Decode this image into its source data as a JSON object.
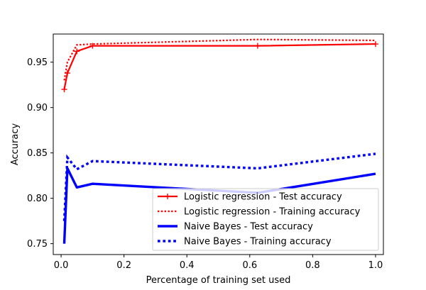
{
  "chart_data": {
    "type": "line",
    "title": "",
    "xlabel": "Percentage of training set used",
    "ylabel": "Accuracy",
    "xlim": [
      -0.025,
      1.025
    ],
    "ylim": [
      0.738,
      0.981
    ],
    "x_ticks": [
      0.0,
      0.2,
      0.4,
      0.6,
      0.8,
      1.0
    ],
    "x_tick_labels": [
      "0.0",
      "0.2",
      "0.4",
      "0.6",
      "0.8",
      "1.0"
    ],
    "y_ticks": [
      0.75,
      0.8,
      0.85,
      0.9,
      0.95
    ],
    "y_tick_labels": [
      "0.75",
      "0.80",
      "0.85",
      "0.90",
      "0.95"
    ],
    "grid": false,
    "legend_position": "lower-right",
    "series": [
      {
        "name": "Logistic regression - Test accuracy",
        "color": "#ff0000",
        "style": "solid",
        "marker": "plus",
        "line_weight": "medium",
        "x": [
          0.01,
          0.02,
          0.05,
          0.1,
          0.625,
          1.0
        ],
        "y": [
          0.92,
          0.938,
          0.962,
          0.968,
          0.968,
          0.97
        ]
      },
      {
        "name": "Logistic regression - Training accuracy",
        "color": "#ff0000",
        "style": "dotted",
        "marker": "none",
        "line_weight": "medium",
        "x": [
          0.01,
          0.02,
          0.05,
          0.1,
          0.625,
          1.0
        ],
        "y": [
          0.93,
          0.95,
          0.969,
          0.97,
          0.975,
          0.974
        ]
      },
      {
        "name": "Naive Bayes - Test accuracy",
        "color": "#0000ff",
        "style": "solid",
        "marker": "none",
        "line_weight": "heavy",
        "x": [
          0.01,
          0.02,
          0.05,
          0.1,
          0.625,
          1.0
        ],
        "y": [
          0.75,
          0.833,
          0.812,
          0.816,
          0.806,
          0.827
        ]
      },
      {
        "name": "Naive Bayes - Training accuracy",
        "color": "#0000ff",
        "style": "dotted",
        "marker": "none",
        "line_weight": "heavy",
        "x": [
          0.01,
          0.02,
          0.05,
          0.1,
          0.625,
          1.0
        ],
        "y": [
          0.775,
          0.845,
          0.832,
          0.841,
          0.833,
          0.849
        ]
      }
    ]
  }
}
